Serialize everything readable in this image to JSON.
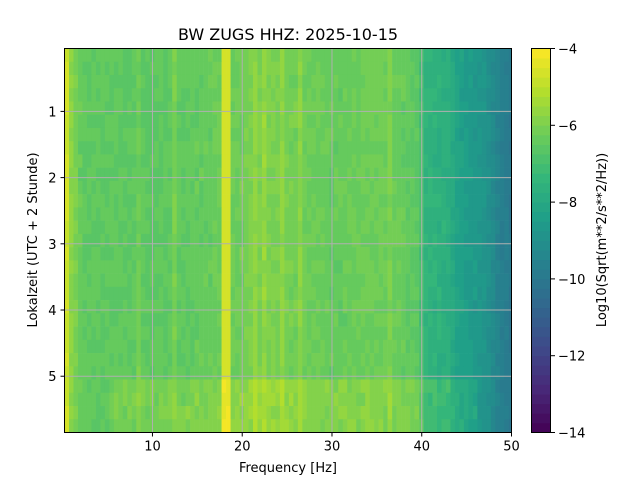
{
  "chart_data": {
    "type": "heatmap",
    "title": "BW ZUGS  HHZ: 2025-10-15",
    "xlabel": "Frequency [Hz]",
    "ylabel": "Lokalzeit (UTC + 2 Stunde)",
    "xlim": [
      0.2,
      50
    ],
    "ylim": [
      5.85,
      0.05
    ],
    "xticks": [
      "10",
      "20",
      "30",
      "40",
      "50"
    ],
    "xtick_values": [
      10,
      20,
      30,
      40,
      50
    ],
    "yticks": [
      "1",
      "2",
      "3",
      "4",
      "5"
    ],
    "ytick_values": [
      1,
      2,
      3,
      4,
      5
    ],
    "grid": true,
    "colormap": "viridis",
    "colorbar": {
      "label": "Log10(Sqrt(m**2/s**2/Hz))",
      "range": [
        -14,
        -4
      ],
      "ticks": [
        "−4",
        "−6",
        "−8",
        "−10",
        "−12",
        "−14"
      ],
      "tick_values": [
        -4,
        -6,
        -8,
        -10,
        -12,
        -14
      ],
      "levels": 40
    },
    "mean_level_by_frequency": {
      "frequency_hz": [
        0.2,
        1,
        2,
        5,
        10,
        15,
        17.5,
        18.2,
        19,
        21,
        24,
        27,
        30,
        35,
        38,
        39.8,
        40.2,
        43,
        44,
        47,
        48.5,
        50
      ],
      "level": [
        -4.3,
        -5.8,
        -6.4,
        -6.5,
        -6.5,
        -6.4,
        -6.3,
        -4.6,
        -6.3,
        -6.0,
        -6.0,
        -6.2,
        -6.4,
        -6.2,
        -6.4,
        -6.6,
        -7.5,
        -7.7,
        -8.3,
        -8.8,
        -9.5,
        -10.0
      ]
    },
    "narrowband_lines_hz": [
      8.5,
      12.5,
      18.2,
      21.5,
      22.5,
      24.5,
      26.5,
      36.5
    ],
    "elevated_time_bands_h": [
      [
        3.6,
        3.7
      ],
      [
        5.1,
        5.85
      ]
    ]
  }
}
